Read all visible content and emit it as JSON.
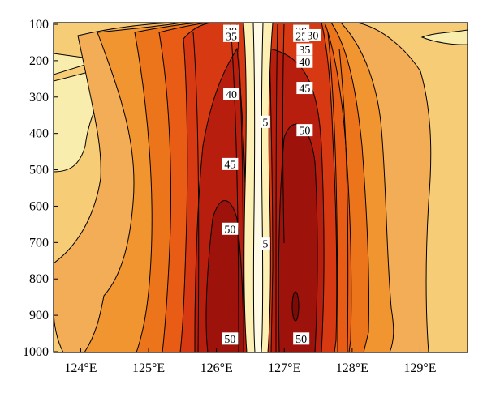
{
  "chart_data": {
    "type": "heatmap",
    "subtype": "filled-contour",
    "title": "",
    "xlabel": "",
    "ylabel": "",
    "x_range": [
      123.6,
      129.7
    ],
    "y_range": [
      1000,
      100
    ],
    "x_ticks": [
      124,
      125,
      126,
      127,
      128,
      129
    ],
    "x_tick_labels": [
      "124°E",
      "125°E",
      "126°E",
      "127°E",
      "128°E",
      "129°E"
    ],
    "y_ticks": [
      100,
      200,
      300,
      400,
      500,
      600,
      700,
      800,
      900,
      1000
    ],
    "y_tick_labels": [
      "100",
      "200",
      "300",
      "400",
      "500",
      "600",
      "700",
      "800",
      "900",
      "1000"
    ],
    "contour_levels": [
      5,
      10,
      15,
      20,
      25,
      30,
      35,
      40,
      45,
      50,
      55
    ],
    "fill_colors": [
      "#fffbe6",
      "#fdf0b4",
      "#f6cc77",
      "#f2ad56",
      "#f0952f",
      "#ec751b",
      "#e85c16",
      "#d73a12",
      "#b81e0e",
      "#9d130c",
      "#7a0b07"
    ],
    "grid": false,
    "legend": "none",
    "contour_labels": [
      {
        "text": "20",
        "x": 126.22,
        "y": 118
      },
      {
        "text": "35",
        "x": 126.22,
        "y": 132
      },
      {
        "text": "40",
        "x": 126.22,
        "y": 292
      },
      {
        "text": "45",
        "x": 126.2,
        "y": 484
      },
      {
        "text": "50",
        "x": 126.2,
        "y": 662
      },
      {
        "text": "50",
        "x": 126.2,
        "y": 964
      },
      {
        "text": "5",
        "x": 126.72,
        "y": 368
      },
      {
        "text": "5",
        "x": 126.72,
        "y": 703
      },
      {
        "text": "20",
        "x": 127.25,
        "y": 118
      },
      {
        "text": "25",
        "x": 127.25,
        "y": 132
      },
      {
        "text": "30",
        "x": 127.42,
        "y": 130
      },
      {
        "text": "35",
        "x": 127.3,
        "y": 169
      },
      {
        "text": "40",
        "x": 127.3,
        "y": 203
      },
      {
        "text": "45",
        "x": 127.3,
        "y": 275
      },
      {
        "text": "50",
        "x": 127.3,
        "y": 391
      },
      {
        "text": "50",
        "x": 127.25,
        "y": 964
      }
    ]
  }
}
